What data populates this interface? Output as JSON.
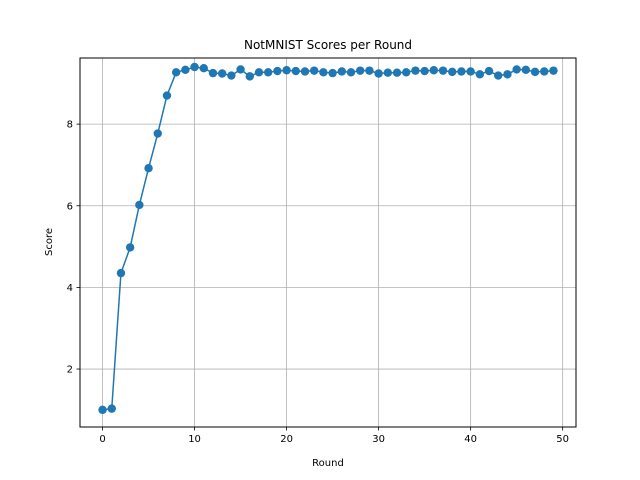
{
  "chart_data": {
    "type": "line",
    "title": "NotMNIST Scores per Round",
    "xlabel": "Round",
    "ylabel": "Score",
    "xlim": [
      -2.45,
      51.45
    ],
    "ylim": [
      0.58,
      9.62
    ],
    "xticks": [
      0,
      10,
      20,
      30,
      40,
      50
    ],
    "yticks": [
      2,
      4,
      6,
      8
    ],
    "grid": true,
    "legend": "none",
    "series": [
      {
        "color": "#1f77b4",
        "marker": "circle",
        "x": [
          0,
          1,
          2,
          3,
          4,
          5,
          6,
          7,
          8,
          9,
          10,
          11,
          12,
          13,
          14,
          15,
          16,
          17,
          18,
          19,
          20,
          21,
          22,
          23,
          24,
          25,
          26,
          27,
          28,
          29,
          30,
          31,
          32,
          33,
          34,
          35,
          36,
          37,
          38,
          39,
          40,
          41,
          42,
          43,
          44,
          45,
          46,
          47,
          48,
          49
        ],
        "y": [
          1.0,
          1.03,
          4.35,
          4.98,
          6.02,
          6.92,
          7.77,
          8.7,
          9.27,
          9.33,
          9.4,
          9.37,
          9.25,
          9.24,
          9.19,
          9.34,
          9.17,
          9.27,
          9.27,
          9.3,
          9.32,
          9.3,
          9.29,
          9.31,
          9.27,
          9.25,
          9.29,
          9.27,
          9.31,
          9.31,
          9.24,
          9.26,
          9.26,
          9.27,
          9.31,
          9.3,
          9.32,
          9.31,
          9.28,
          9.29,
          9.29,
          9.22,
          9.3,
          9.19,
          9.22,
          9.34,
          9.33,
          9.28,
          9.29,
          9.31
        ]
      }
    ]
  }
}
